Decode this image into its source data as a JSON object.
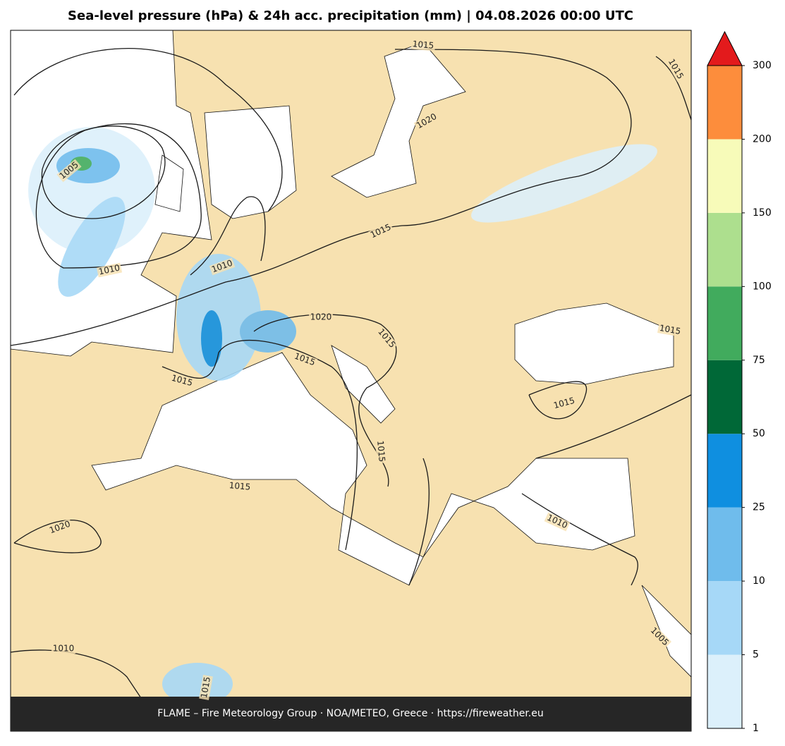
{
  "title": "Sea-level pressure (hPa) & 24h acc. precipitation (mm)  |  04.08.2026 00:00 UTC",
  "map": {
    "contour_labels": [
      "1010",
      "1010",
      "1015",
      "1020",
      "1015",
      "1015",
      "1015",
      "1020",
      "1010",
      "1010",
      "1015",
      "1015",
      "1015",
      "1020",
      "1015",
      "1005",
      "1015",
      "1015",
      "1015",
      "1005"
    ]
  },
  "colorbar": {
    "levels": [
      1,
      5,
      10,
      25,
      50,
      75,
      100,
      150,
      200,
      300
    ],
    "colors": [
      "#dcf0fb",
      "#a6d8f7",
      "#6fbcec",
      "#0f8fe0",
      "#006837",
      "#41ab5d",
      "#addf8e",
      "#f7fbb9",
      "#fd8d3c"
    ],
    "extend_color": "#e31a1c"
  },
  "footer": "FLAME – Fire Meteorology Group · NOA/METEO, Greece · https://fireweather.eu"
}
